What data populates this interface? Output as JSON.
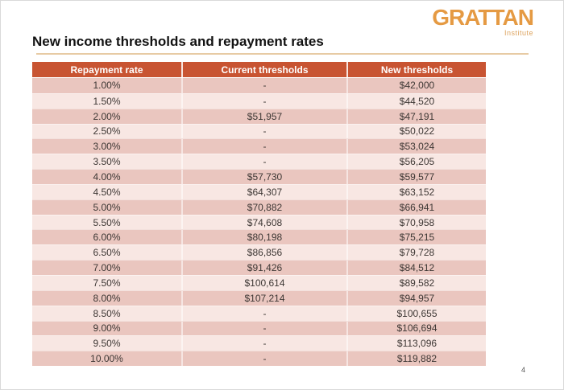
{
  "page": {
    "page_number": "4"
  },
  "logo": {
    "brand": "GRATTAN",
    "sub": "Institute",
    "color": "#e59a43"
  },
  "header": {
    "title": "New income thresholds and repayment rates"
  },
  "colors": {
    "table_header_bg": "#c85432",
    "row_odd_bg": "#eac6bf",
    "row_even_bg": "#f8e7e3",
    "title_rule": "#e7cba4",
    "body_text": "#3d3734"
  },
  "chart_data": {
    "type": "table",
    "title": "New income thresholds and repayment rates",
    "columns": [
      "Repayment rate",
      "Current thresholds",
      "New thresholds"
    ],
    "rows": [
      [
        "1.00%",
        "-",
        "$42,000"
      ],
      [
        "1.50%",
        "-",
        "$44,520"
      ],
      [
        "2.00%",
        "$51,957",
        "$47,191"
      ],
      [
        "2.50%",
        "-",
        "$50,022"
      ],
      [
        "3.00%",
        "-",
        "$53,024"
      ],
      [
        "3.50%",
        "-",
        "$56,205"
      ],
      [
        "4.00%",
        "$57,730",
        "$59,577"
      ],
      [
        "4.50%",
        "$64,307",
        "$63,152"
      ],
      [
        "5.00%",
        "$70,882",
        "$66,941"
      ],
      [
        "5.50%",
        "$74,608",
        "$70,958"
      ],
      [
        "6.00%",
        "$80,198",
        "$75,215"
      ],
      [
        "6.50%",
        "$86,856",
        "$79,728"
      ],
      [
        "7.00%",
        "$91,426",
        "$84,512"
      ],
      [
        "7.50%",
        "$100,614",
        "$89,582"
      ],
      [
        "8.00%",
        "$107,214",
        "$94,957"
      ],
      [
        "8.50%",
        "-",
        "$100,655"
      ],
      [
        "9.00%",
        "-",
        "$106,694"
      ],
      [
        "9.50%",
        "-",
        "$113,096"
      ],
      [
        "10.00%",
        "-",
        "$119,882"
      ]
    ]
  }
}
